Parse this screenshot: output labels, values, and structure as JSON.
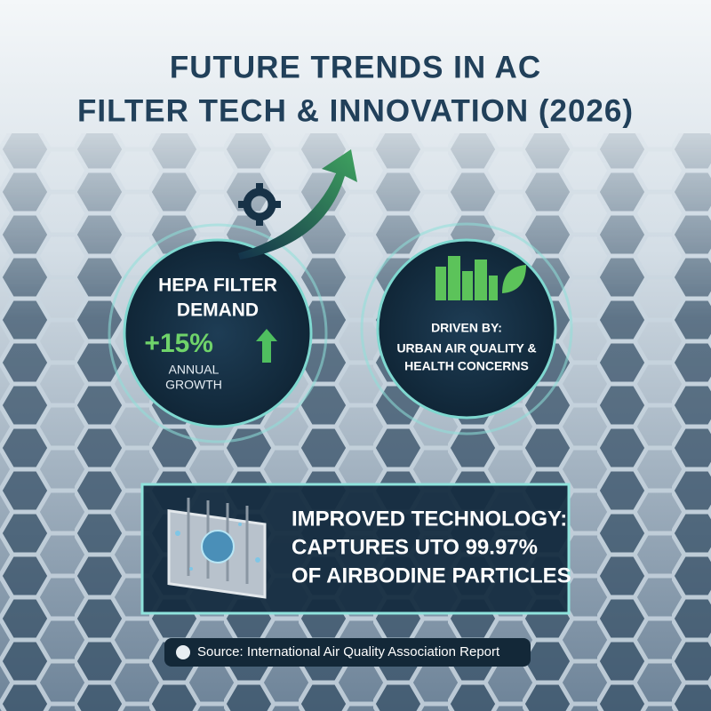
{
  "title": {
    "lines": [
      "FUTURE TRENDS IN AC",
      "FILTER TECH & INNOVATION (2026)"
    ]
  },
  "left_circle": {
    "heading": [
      "HEPA FILTER",
      "DEMAND"
    ],
    "stat": "+15%",
    "caption": [
      "ANNUAL",
      "GROWTH"
    ]
  },
  "right_circle": {
    "lines": [
      "DRIVEN BY:",
      "URBAN AIR QUALITY &",
      "HEALTH CONCERNS"
    ]
  },
  "tech_box": {
    "lines": [
      "IMPROVED TECHNOLOGY:",
      "CAPTURES UTO 99.97%",
      "OF AIRBODINE PARTICLES"
    ]
  },
  "source": "Source: International Air Quality Association Report"
}
